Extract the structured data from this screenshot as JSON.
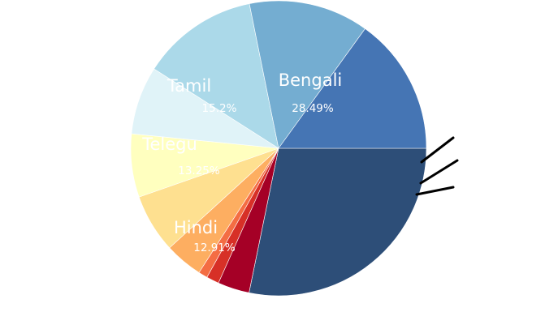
{
  "chart_data": {
    "type": "pie",
    "title": "",
    "slices": [
      {
        "label": "Bengali",
        "pct_text": "28.49%",
        "value": 28.49,
        "color": "#2d4e78"
      },
      {
        "label": "",
        "pct_text": "",
        "value": 3.5,
        "color": "#a50026"
      },
      {
        "label": "",
        "pct_text": "",
        "value": 1.4,
        "color": "#d73027"
      },
      {
        "label": "",
        "pct_text": "",
        "value": 1.0,
        "color": "#f46d43"
      },
      {
        "label": "",
        "pct_text": "",
        "value": 4.2,
        "color": "#fdae61"
      },
      {
        "label": "",
        "pct_text": "",
        "value": 6.5,
        "color": "#fee090"
      },
      {
        "label": "",
        "pct_text": "",
        "value": 7.0,
        "color": "#ffffbf"
      },
      {
        "label": "",
        "pct_text": "",
        "value": 7.55,
        "color": "#e0f3f8"
      },
      {
        "label": "Hindi",
        "pct_text": "12.91%",
        "value": 12.91,
        "color": "#abd9e9"
      },
      {
        "label": "Telegu",
        "pct_text": "13.25%",
        "value": 13.25,
        "color": "#74add1"
      },
      {
        "label": "Tamil",
        "pct_text": "15.2%",
        "value": 15.2,
        "color": "#4575b4"
      }
    ]
  }
}
